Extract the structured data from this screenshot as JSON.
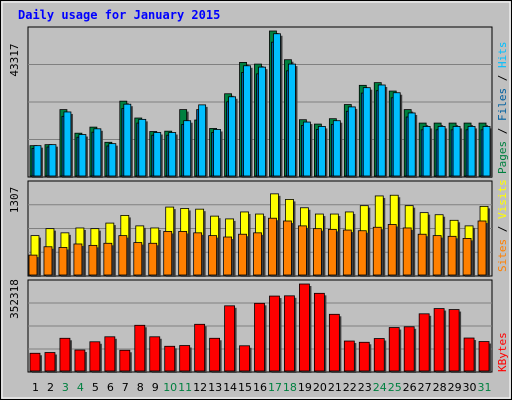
{
  "chart_data": [
    {
      "type": "bar",
      "title": "Daily usage for January 2015",
      "categories": [
        "1",
        "2",
        "3",
        "4",
        "5",
        "6",
        "7",
        "8",
        "9",
        "10",
        "11",
        "12",
        "13",
        "14",
        "15",
        "16",
        "17",
        "18",
        "19",
        "20",
        "21",
        "22",
        "23",
        "24",
        "25",
        "26",
        "27",
        "28",
        "29",
        "30",
        "31"
      ],
      "weekend_days": [
        3,
        4,
        10,
        11,
        17,
        18,
        24,
        25,
        31
      ],
      "ylim": [
        0,
        43317
      ],
      "ymax_label": "43317",
      "grid": true,
      "series": [
        {
          "name": "Hits",
          "color": "#00bfff",
          "values": [
            9300,
            9600,
            19300,
            12600,
            14300,
            9900,
            21600,
            17100,
            13200,
            13200,
            16700,
            21400,
            14100,
            23800,
            33000,
            32600,
            42500,
            33500,
            16300,
            15000,
            16700,
            20800,
            26500,
            27300,
            25000,
            19000,
            15000,
            15000,
            15000,
            15000,
            15000
          ]
        },
        {
          "name": "Files",
          "color": "#0060a0",
          "values": [
            8500,
            8900,
            18000,
            11800,
            13300,
            9200,
            20300,
            16000,
            12400,
            12400,
            15600,
            20000,
            13200,
            22300,
            31000,
            30600,
            40000,
            31500,
            15300,
            14100,
            15600,
            19500,
            24900,
            25600,
            23500,
            17800,
            14000,
            14000,
            14000,
            14000,
            14000
          ]
        },
        {
          "name": "Pages",
          "color": "#008040",
          "values": [
            9300,
            9600,
            20000,
            13000,
            14800,
            10300,
            22500,
            17500,
            13500,
            13600,
            20000,
            16900,
            14400,
            24700,
            34000,
            33500,
            44000,
            34800,
            17000,
            15700,
            17300,
            21500,
            27200,
            28000,
            25500,
            20000,
            16000,
            16000,
            16000,
            16000,
            16000
          ]
        }
      ]
    },
    {
      "type": "bar",
      "ylim": [
        0,
        1307
      ],
      "ymax_label": "1307",
      "grid": true,
      "series": [
        {
          "name": "Visits",
          "color": "#ffff00",
          "values": [
            580,
            680,
            620,
            690,
            680,
            760,
            870,
            720,
            690,
            990,
            970,
            960,
            860,
            820,
            920,
            890,
            1180,
            1100,
            980,
            890,
            890,
            920,
            1010,
            1150,
            1160,
            1010,
            910,
            880,
            800,
            720,
            1000
          ]
        },
        {
          "name": "Sites",
          "color": "#ff8000",
          "values": [
            300,
            420,
            410,
            460,
            440,
            470,
            580,
            480,
            470,
            640,
            640,
            620,
            580,
            560,
            600,
            620,
            830,
            790,
            720,
            680,
            670,
            660,
            650,
            700,
            740,
            690,
            600,
            580,
            570,
            540,
            790
          ]
        }
      ]
    },
    {
      "type": "bar",
      "ylim": [
        0,
        352318
      ],
      "ymax_label": "352318",
      "grid": true,
      "series": [
        {
          "name": "KBytes",
          "color": "#ff0000",
          "values": [
            75000,
            78000,
            135000,
            88000,
            121000,
            141000,
            87000,
            187000,
            141000,
            103000,
            106000,
            191000,
            135000,
            265000,
            105000,
            275000,
            304000,
            305000,
            352318,
            315000,
            231000,
            124000,
            119000,
            134000,
            178000,
            181000,
            233000,
            254000,
            250000,
            136000,
            122000
          ]
        }
      ]
    }
  ],
  "legend": {
    "top_pages": "Pages",
    "top_files": "Files",
    "top_hits": "Hits",
    "mid_sites": "Sites",
    "mid_visits": "Visits",
    "bot_kbytes": "KBytes",
    "separator": " / ",
    "pages_color": "#008040",
    "files_color": "#0060a0",
    "hits_color": "#00bfff",
    "sites_color": "#ff8000",
    "visits_color": "#ffff00",
    "kbytes_color": "#ff0000"
  }
}
